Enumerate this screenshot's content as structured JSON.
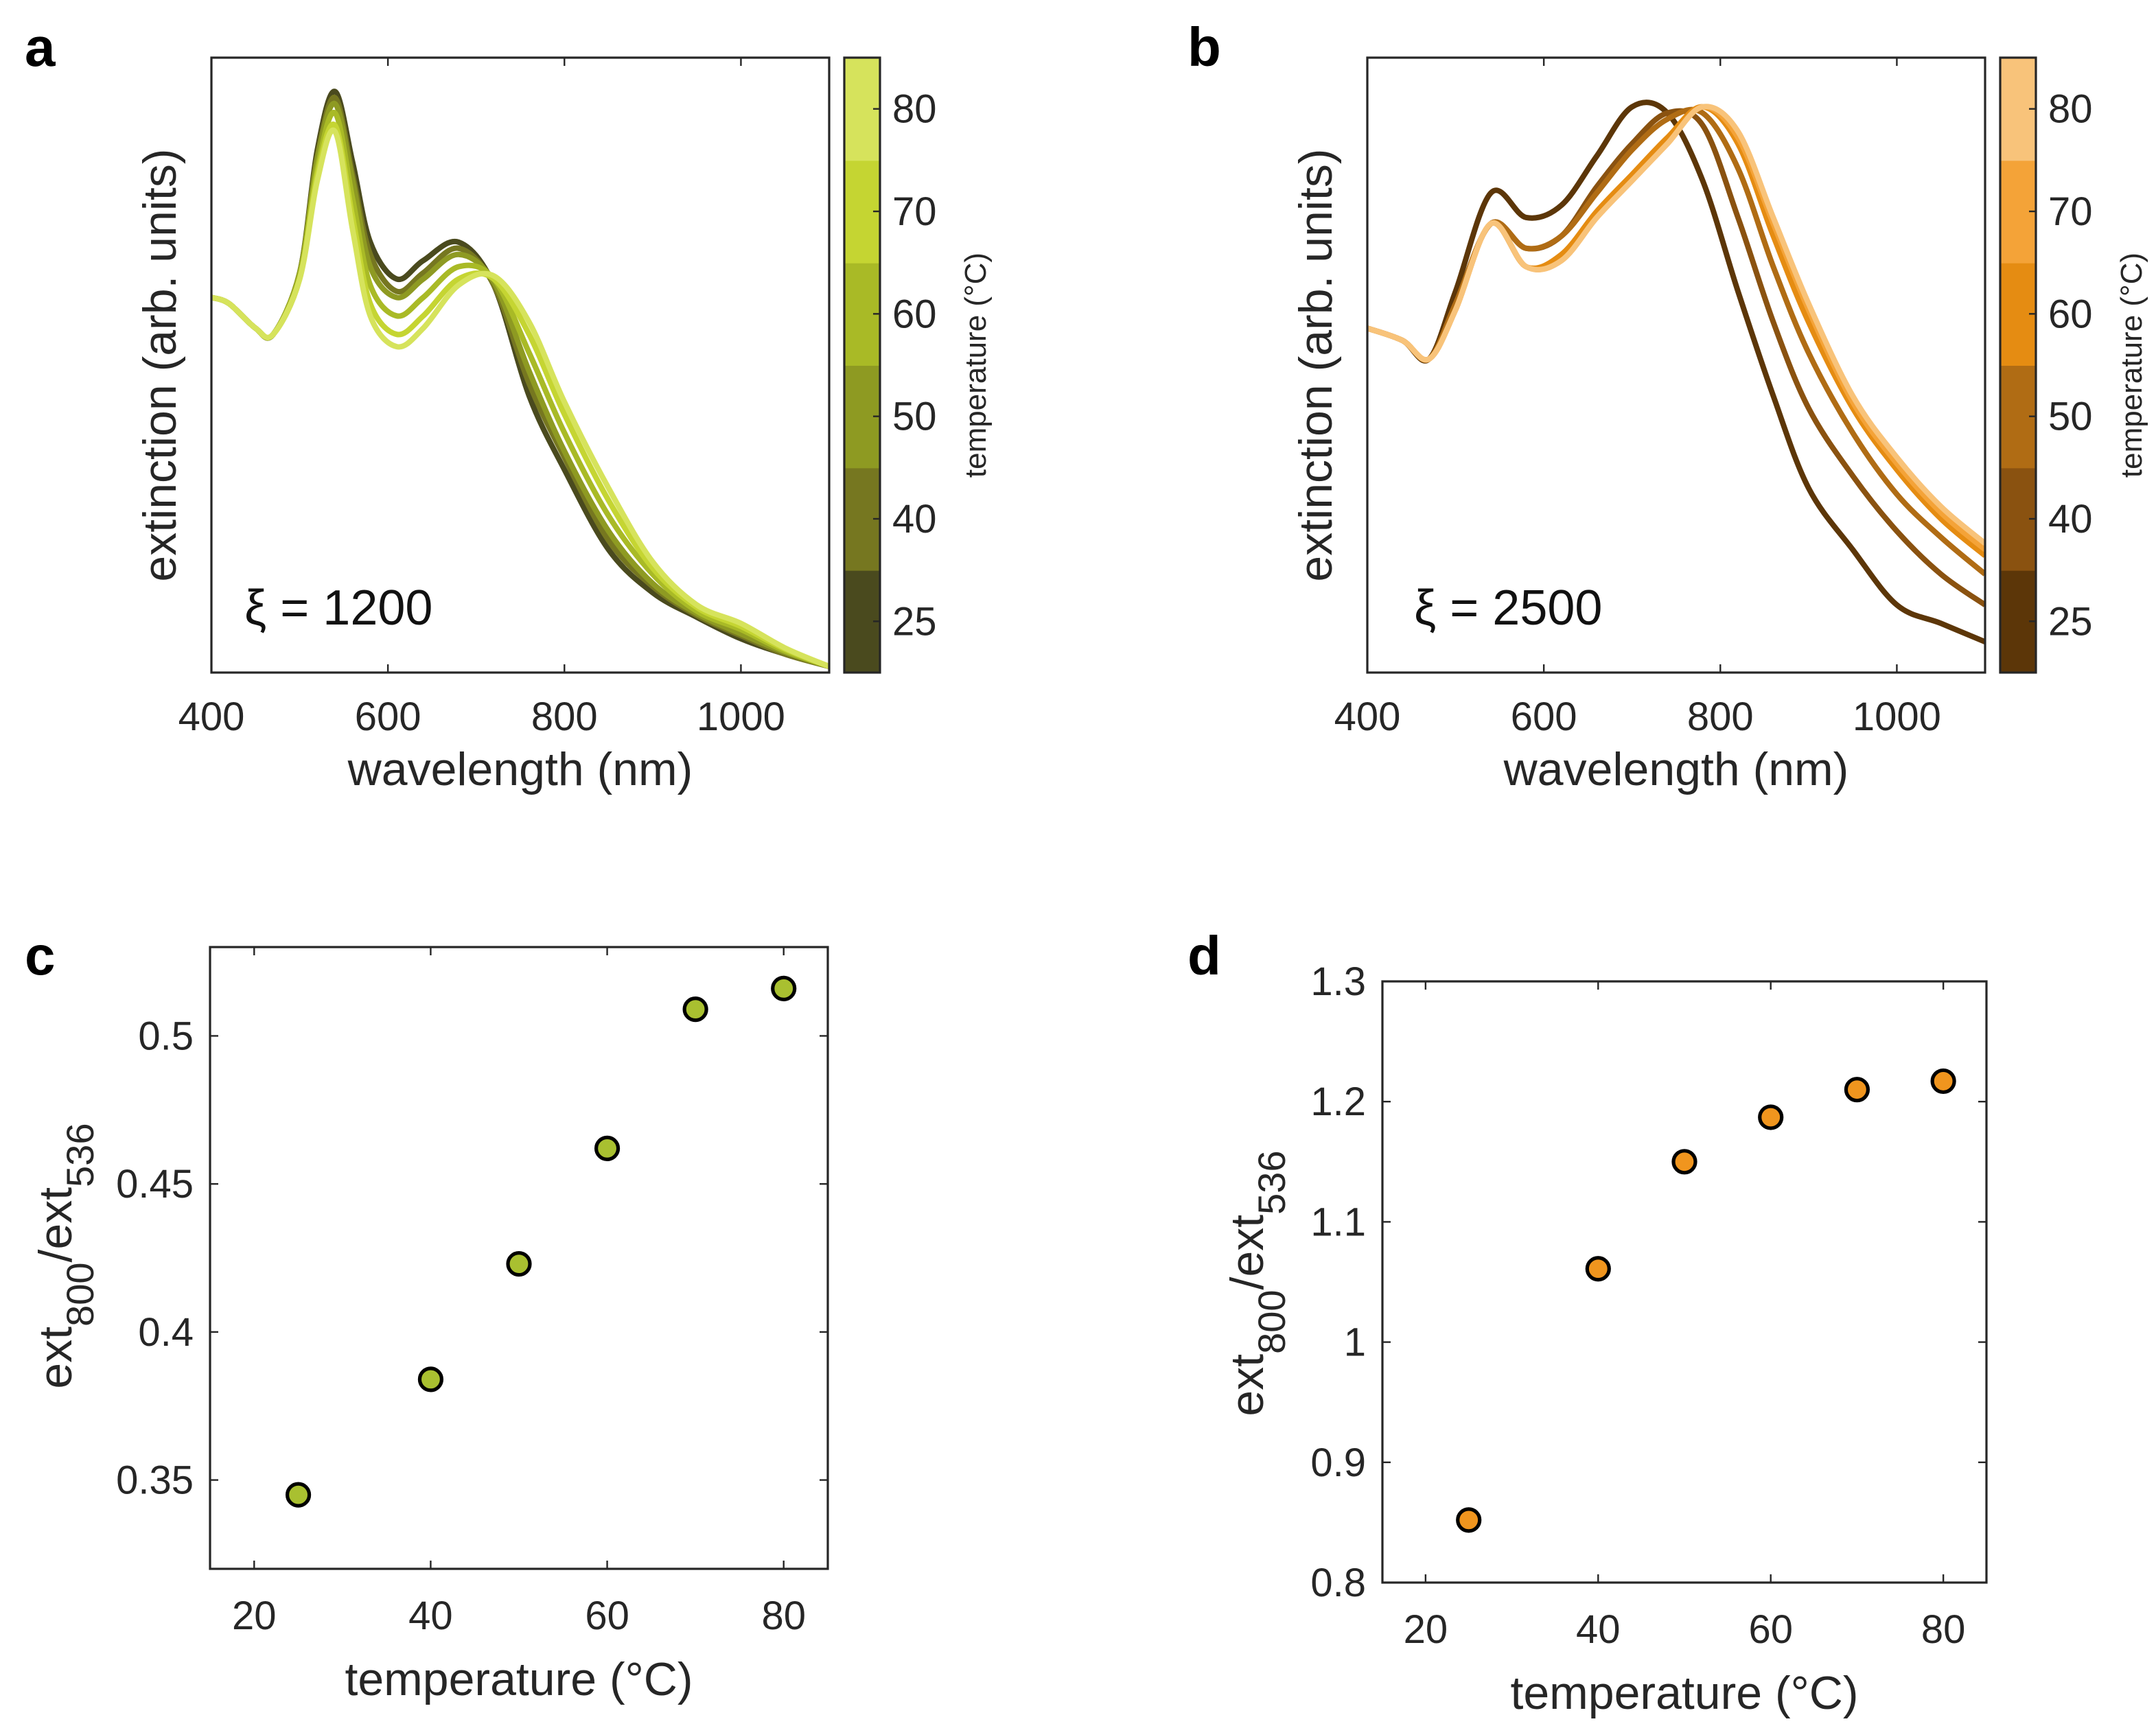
{
  "chart_data": [
    {
      "panel": "a",
      "type": "line",
      "xlabel": "wavelength (nm)",
      "ylabel": "extinction (arb. units)",
      "annotation": "ξ = 1200",
      "xlim": [
        400,
        1100
      ],
      "ylim": [
        0,
        1
      ],
      "xticks": [
        400,
        600,
        800,
        1000
      ],
      "yticks": [],
      "x": [
        400,
        420,
        450,
        470,
        500,
        520,
        540,
        560,
        580,
        610,
        640,
        680,
        720,
        760,
        800,
        850,
        900,
        950,
        1000,
        1050,
        1100
      ],
      "series": [
        {
          "temperature": 25,
          "color": "#4a4a1e",
          "values": [
            0.61,
            0.6,
            0.56,
            0.55,
            0.65,
            0.85,
            0.945,
            0.83,
            0.7,
            0.64,
            0.67,
            0.7,
            0.63,
            0.45,
            0.33,
            0.2,
            0.13,
            0.09,
            0.055,
            0.03,
            0.01
          ]
        },
        {
          "temperature": 40,
          "color": "#767720",
          "values": [
            0.61,
            0.6,
            0.56,
            0.55,
            0.65,
            0.84,
            0.935,
            0.81,
            0.68,
            0.62,
            0.65,
            0.69,
            0.63,
            0.47,
            0.35,
            0.215,
            0.14,
            0.093,
            0.06,
            0.03,
            0.01
          ]
        },
        {
          "temperature": 50,
          "color": "#8e9a22",
          "values": [
            0.61,
            0.6,
            0.56,
            0.55,
            0.65,
            0.835,
            0.925,
            0.8,
            0.66,
            0.61,
            0.64,
            0.68,
            0.635,
            0.49,
            0.36,
            0.23,
            0.145,
            0.096,
            0.063,
            0.033,
            0.01
          ]
        },
        {
          "temperature": 60,
          "color": "#a9ba26",
          "values": [
            0.61,
            0.6,
            0.56,
            0.55,
            0.645,
            0.82,
            0.91,
            0.77,
            0.63,
            0.58,
            0.61,
            0.66,
            0.64,
            0.52,
            0.39,
            0.255,
            0.16,
            0.1,
            0.07,
            0.035,
            0.01
          ]
        },
        {
          "temperature": 70,
          "color": "#c5d532",
          "values": [
            0.61,
            0.6,
            0.56,
            0.55,
            0.64,
            0.81,
            0.89,
            0.74,
            0.6,
            0.55,
            0.58,
            0.64,
            0.64,
            0.55,
            0.42,
            0.28,
            0.17,
            0.106,
            0.075,
            0.038,
            0.01
          ]
        },
        {
          "temperature": 80,
          "color": "#d6e35c",
          "values": [
            0.61,
            0.6,
            0.56,
            0.55,
            0.64,
            0.8,
            0.88,
            0.72,
            0.58,
            0.53,
            0.56,
            0.63,
            0.645,
            0.57,
            0.44,
            0.3,
            0.18,
            0.11,
            0.08,
            0.04,
            0.01
          ]
        }
      ],
      "colorbar": {
        "label": "temperature (°C)",
        "ticks": [
          "25",
          "40",
          "50",
          "60",
          "70",
          "80"
        ],
        "colors": [
          "#4a4a1e",
          "#767720",
          "#8e9a22",
          "#a9ba26",
          "#c5d532",
          "#d6e35c"
        ]
      }
    },
    {
      "panel": "b",
      "type": "line",
      "xlabel": "wavelength (nm)",
      "ylabel": "extinction (arb. units)",
      "annotation": "ξ =  2500",
      "xlim": [
        400,
        1100
      ],
      "ylim": [
        0,
        1
      ],
      "xticks": [
        400,
        600,
        800,
        1000
      ],
      "yticks": [],
      "x": [
        400,
        440,
        470,
        500,
        540,
        580,
        620,
        660,
        700,
        740,
        780,
        820,
        860,
        900,
        950,
        1000,
        1050,
        1100
      ],
      "series": [
        {
          "temperature": 25,
          "color": "#5c3608",
          "values": [
            0.56,
            0.54,
            0.51,
            0.62,
            0.78,
            0.74,
            0.76,
            0.84,
            0.92,
            0.91,
            0.8,
            0.62,
            0.45,
            0.3,
            0.2,
            0.11,
            0.08,
            0.05
          ]
        },
        {
          "temperature": 40,
          "color": "#8a5210",
          "values": [
            0.56,
            0.54,
            0.51,
            0.6,
            0.73,
            0.69,
            0.71,
            0.79,
            0.86,
            0.91,
            0.89,
            0.74,
            0.57,
            0.43,
            0.32,
            0.23,
            0.16,
            0.11
          ]
        },
        {
          "temperature": 50,
          "color": "#b06c14",
          "values": [
            0.56,
            0.54,
            0.51,
            0.6,
            0.73,
            0.69,
            0.71,
            0.78,
            0.85,
            0.9,
            0.91,
            0.82,
            0.66,
            0.52,
            0.39,
            0.29,
            0.22,
            0.16
          ]
        },
        {
          "temperature": 60,
          "color": "#e58c12",
          "values": [
            0.56,
            0.54,
            0.51,
            0.59,
            0.73,
            0.66,
            0.68,
            0.75,
            0.81,
            0.87,
            0.92,
            0.86,
            0.71,
            0.57,
            0.43,
            0.33,
            0.25,
            0.19
          ]
        },
        {
          "temperature": 70,
          "color": "#f4a338",
          "values": [
            0.56,
            0.54,
            0.51,
            0.59,
            0.73,
            0.66,
            0.67,
            0.74,
            0.8,
            0.86,
            0.92,
            0.87,
            0.73,
            0.59,
            0.44,
            0.34,
            0.26,
            0.2
          ]
        },
        {
          "temperature": 80,
          "color": "#f8c37a",
          "values": [
            0.56,
            0.54,
            0.51,
            0.59,
            0.73,
            0.66,
            0.67,
            0.74,
            0.8,
            0.86,
            0.92,
            0.88,
            0.74,
            0.6,
            0.45,
            0.35,
            0.27,
            0.21
          ]
        }
      ],
      "colorbar": {
        "label": "temperature (°C)",
        "ticks": [
          "25",
          "40",
          "50",
          "60",
          "70",
          "80"
        ],
        "colors": [
          "#5c3608",
          "#8a5210",
          "#b06c14",
          "#e58c12",
          "#f4a338",
          "#f8c37a"
        ]
      }
    },
    {
      "panel": "c",
      "type": "scatter",
      "xlabel": "temperature (°C)",
      "ylabel_parts": [
        {
          "t": "ext"
        },
        {
          "t": "800",
          "sub": true
        },
        {
          "t": "/ext"
        },
        {
          "t": "536",
          "sub": true
        }
      ],
      "xlim": [
        15,
        85
      ],
      "ylim": [
        0.32,
        0.53
      ],
      "xticks": [
        20,
        40,
        60,
        80
      ],
      "yticks": [
        0.35,
        0.4,
        0.45,
        0.5
      ],
      "ytick_labels": [
        "0.35",
        "0.4",
        "0.45",
        "0.5"
      ],
      "marker_color": "#a9c030",
      "x": [
        25,
        40,
        50,
        60,
        70,
        80
      ],
      "values": [
        0.345,
        0.384,
        0.423,
        0.462,
        0.509,
        0.516
      ]
    },
    {
      "panel": "d",
      "type": "scatter",
      "xlabel": "temperature (°C)",
      "ylabel_parts": [
        {
          "t": "ext"
        },
        {
          "t": "800",
          "sub": true
        },
        {
          "t": "/ext"
        },
        {
          "t": "536",
          "sub": true
        }
      ],
      "xlim": [
        15,
        85
      ],
      "ylim": [
        0.8,
        1.3
      ],
      "xticks": [
        20,
        40,
        60,
        80
      ],
      "yticks": [
        0.8,
        0.9,
        1.0,
        1.1,
        1.2,
        1.3
      ],
      "ytick_labels": [
        "0.8",
        "0.9",
        "1",
        "1.1",
        "1.2",
        "1.3"
      ],
      "marker_color": "#f0951e",
      "x": [
        25,
        40,
        50,
        60,
        70,
        80
      ],
      "values": [
        0.852,
        1.061,
        1.15,
        1.187,
        1.21,
        1.217
      ]
    }
  ]
}
